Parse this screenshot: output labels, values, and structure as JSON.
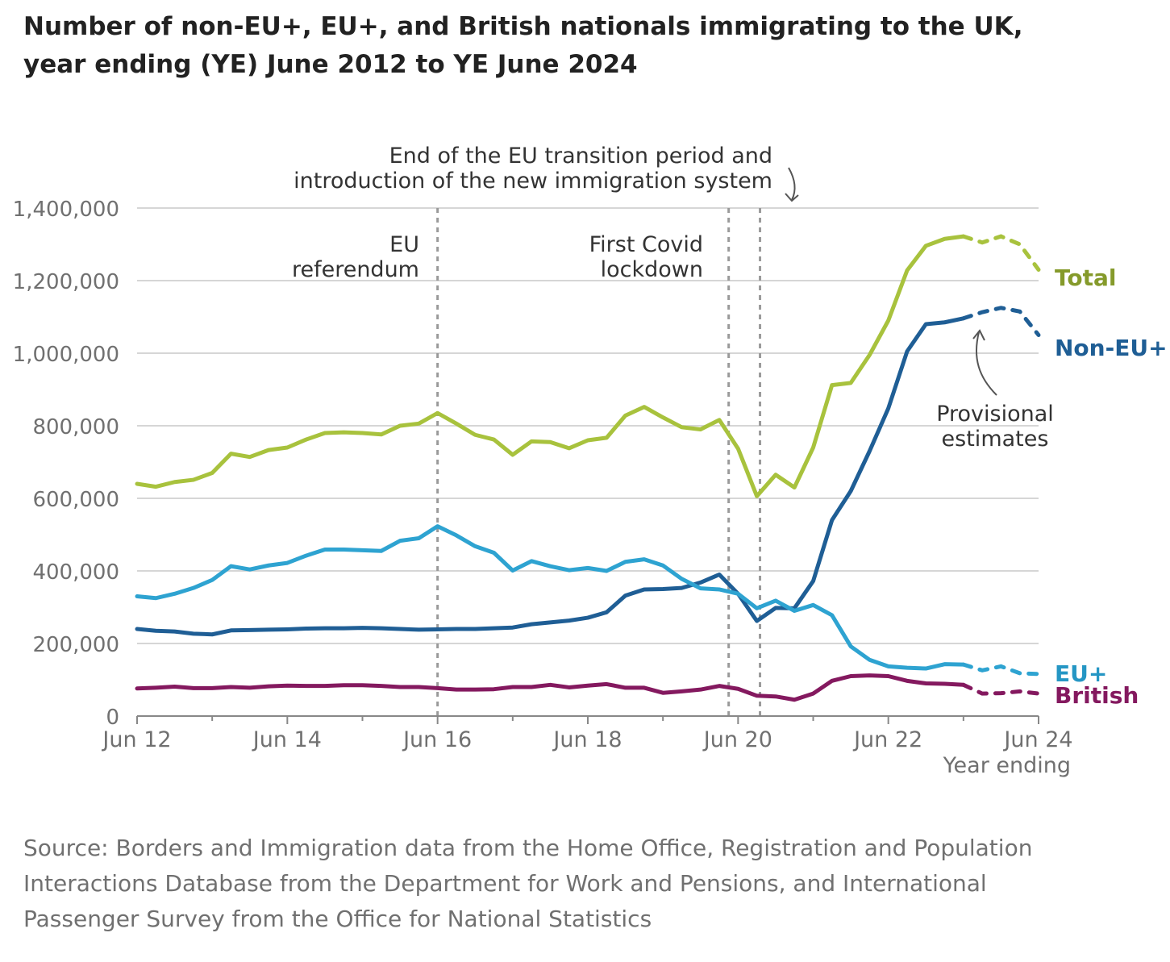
{
  "title_lines": [
    "Number of non-EU+, EU+, and British nationals immigrating to the UK,",
    "year ending (YE) June 2012 to YE June 2024"
  ],
  "source_lines": [
    "Source: Borders and Immigration data from the Home Office, Registration and Population",
    "Interactions Database from the Department for Work and Pensions, and International",
    "Passenger Survey from the Office for National Statistics"
  ],
  "chart_data": {
    "type": "line",
    "xlabel": "Year ending",
    "x_ticks": [
      2012.5,
      2014.5,
      2016.5,
      2018.5,
      2020.5,
      2022.5,
      2024.5
    ],
    "x_tick_labels": [
      "Jun 12",
      "Jun 14",
      "Jun 16",
      "Jun 18",
      "Jun 20",
      "Jun 22",
      "Jun 24"
    ],
    "xlim": [
      2012.5,
      2024.5
    ],
    "ylim": [
      0,
      1400000
    ],
    "y_ticks": [
      0,
      200000,
      400000,
      600000,
      800000,
      1000000,
      1200000,
      1400000
    ],
    "y_tick_labels": [
      "0",
      "200,000",
      "400,000",
      "600,000",
      "800,000",
      "1,000,000",
      "1,200,000",
      "1,400,000"
    ],
    "grid": true,
    "legend": "direct labels at line ends (right)",
    "x": [
      2012.5,
      2012.75,
      2013.0,
      2013.25,
      2013.5,
      2013.75,
      2014.0,
      2014.25,
      2014.5,
      2014.75,
      2015.0,
      2015.25,
      2015.5,
      2015.75,
      2016.0,
      2016.25,
      2016.5,
      2016.75,
      2017.0,
      2017.25,
      2017.5,
      2017.75,
      2018.0,
      2018.25,
      2018.5,
      2018.75,
      2019.0,
      2019.25,
      2019.5,
      2019.75,
      2020.0,
      2020.25,
      2020.5,
      2020.75,
      2021.0,
      2021.25,
      2021.5,
      2021.75,
      2022.0,
      2022.25,
      2022.5,
      2022.75,
      2023.0,
      2023.25,
      2023.5,
      2023.75,
      2024.0,
      2024.25,
      2024.5
    ],
    "provisional_from_x": 2023.5,
    "series": [
      {
        "name": "Total",
        "color": "#a8c23d",
        "label_color": "#859a2b",
        "values": [
          640000,
          632000,
          645000,
          651000,
          670000,
          723000,
          714000,
          733000,
          740000,
          762000,
          780000,
          782000,
          780000,
          776000,
          800000,
          806000,
          835000,
          806000,
          775000,
          762000,
          720000,
          757000,
          755000,
          738000,
          760000,
          767000,
          828000,
          852000,
          823000,
          796000,
          790000,
          816000,
          737000,
          606000,
          665000,
          630000,
          740000,
          912000,
          918000,
          995000,
          1090000,
          1228000,
          1296000,
          1315000,
          1322000,
          1305000,
          1322000,
          1300000,
          1230000
        ]
      },
      {
        "name": "Non-EU+",
        "color": "#1f5e95",
        "label_color": "#1f5e95",
        "values": [
          240000,
          235000,
          233000,
          227000,
          225000,
          236000,
          237000,
          238000,
          239000,
          241000,
          242000,
          242000,
          243000,
          242000,
          240000,
          238000,
          239000,
          240000,
          240000,
          242000,
          244000,
          253000,
          258000,
          263000,
          271000,
          286000,
          332000,
          349000,
          350000,
          353000,
          368000,
          390000,
          337000,
          262000,
          298000,
          297000,
          372000,
          540000,
          620000,
          730000,
          848000,
          1005000,
          1080000,
          1085000,
          1096000,
          1113000,
          1125000,
          1115000,
          1050000
        ]
      },
      {
        "name": "EU+",
        "color": "#2ea3d1",
        "label_color": "#2596c4",
        "values": [
          330000,
          325000,
          337000,
          353000,
          375000,
          413000,
          404000,
          415000,
          422000,
          442000,
          459000,
          459000,
          457000,
          455000,
          483000,
          490000,
          523000,
          498000,
          468000,
          450000,
          401000,
          427000,
          413000,
          402000,
          408000,
          400000,
          425000,
          432000,
          415000,
          378000,
          352000,
          349000,
          337000,
          297000,
          318000,
          290000,
          306000,
          278000,
          192000,
          155000,
          137000,
          133000,
          131000,
          143000,
          142000,
          126000,
          137000,
          118000,
          116000
        ]
      },
      {
        "name": "British",
        "color": "#84195f",
        "label_color": "#84195f",
        "values": [
          76000,
          78000,
          81000,
          77000,
          77000,
          80000,
          78000,
          82000,
          84000,
          83000,
          83000,
          85000,
          85000,
          83000,
          80000,
          80000,
          77000,
          73000,
          73000,
          74000,
          80000,
          80000,
          86000,
          79000,
          84000,
          88000,
          78000,
          78000,
          64000,
          68000,
          73000,
          83000,
          75000,
          56000,
          54000,
          45000,
          62000,
          97000,
          110000,
          112000,
          110000,
          97000,
          90000,
          89000,
          86000,
          62000,
          63000,
          68000,
          62000
        ]
      }
    ],
    "annotations": [
      {
        "x": 2016.5,
        "lines": [
          "EU",
          "referendum"
        ]
      },
      {
        "x": 2020.375,
        "lines": [
          "First Covid",
          "lockdown"
        ]
      },
      {
        "x": 2020.792,
        "lines": [
          "End of the EU transition period and",
          "introduction of the new immigration system"
        ]
      }
    ],
    "provisional_note": [
      "Provisional",
      "estimates"
    ]
  }
}
